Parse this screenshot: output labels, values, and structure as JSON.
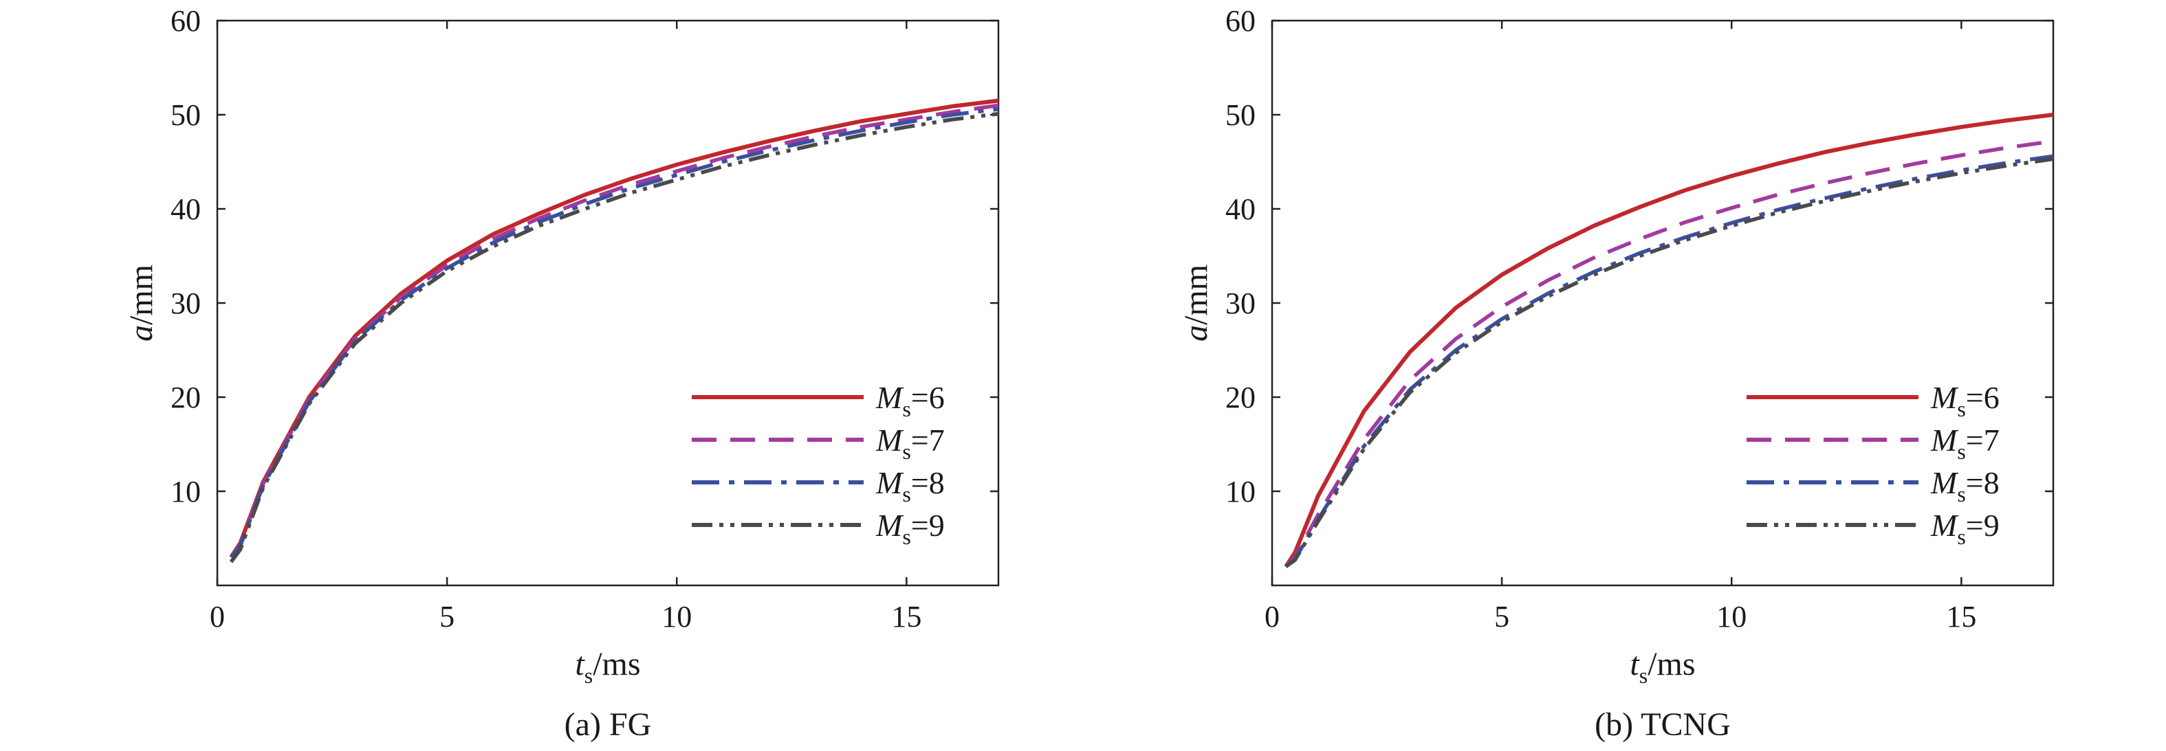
{
  "chart_data": [
    {
      "type": "line",
      "caption": "(a) FG",
      "xlabel": {
        "italic": "t",
        "sub": "s",
        "rest": "/ms"
      },
      "ylabel": {
        "italic": "a",
        "rest": "/mm"
      },
      "xlim": [
        0,
        17
      ],
      "ylim": [
        0,
        60
      ],
      "xticks": [
        0,
        5,
        10,
        15
      ],
      "yticks": [
        10,
        20,
        30,
        40,
        50,
        60
      ],
      "legend_position": "bottom-right",
      "series": [
        {
          "name": "Ms=6",
          "label_italic": "M",
          "label_sub": "s",
          "label_rest": "=6",
          "color": "#c1272d",
          "dash": "solid",
          "x": [
            0.3,
            0.5,
            1,
            2,
            3,
            4,
            5,
            6,
            7,
            8,
            9,
            10,
            11,
            12,
            13,
            14,
            15,
            16,
            17
          ],
          "y": [
            3.0,
            4.5,
            11.0,
            20.0,
            26.5,
            31.0,
            34.5,
            37.3,
            39.5,
            41.5,
            43.2,
            44.7,
            46.0,
            47.2,
            48.3,
            49.3,
            50.1,
            50.9,
            51.5
          ]
        },
        {
          "name": "Ms=7",
          "label_italic": "M",
          "label_sub": "s",
          "label_rest": "=7",
          "color": "#a23b9e",
          "dash": "dashed",
          "x": [
            0.3,
            0.5,
            1,
            2,
            3,
            4,
            5,
            6,
            7,
            8,
            9,
            10,
            11,
            12,
            13,
            14,
            15,
            16,
            17
          ],
          "y": [
            3.0,
            4.3,
            10.8,
            19.8,
            26.2,
            30.6,
            34.0,
            36.8,
            39.0,
            40.9,
            42.6,
            44.0,
            45.4,
            46.6,
            47.7,
            48.7,
            49.5,
            50.3,
            51.0
          ]
        },
        {
          "name": "Ms=8",
          "label_italic": "M",
          "label_sub": "s",
          "label_rest": "=8",
          "color": "#3b4fa0",
          "dash": "dashdot",
          "x": [
            0.3,
            0.5,
            1,
            2,
            3,
            4,
            5,
            6,
            7,
            8,
            9,
            10,
            11,
            12,
            13,
            14,
            15,
            16,
            17
          ],
          "y": [
            3.0,
            4.2,
            10.6,
            19.5,
            26.0,
            30.3,
            33.7,
            36.4,
            38.6,
            40.5,
            42.2,
            43.6,
            45.0,
            46.2,
            47.3,
            48.3,
            49.2,
            50.0,
            50.6
          ]
        },
        {
          "name": "Ms=9",
          "label_italic": "M",
          "label_sub": "s",
          "label_rest": "=9",
          "color": "#4a4a4a",
          "dash": "dashdotdot",
          "x": [
            0.3,
            0.5,
            1,
            2,
            3,
            4,
            5,
            6,
            7,
            8,
            9,
            10,
            11,
            12,
            13,
            14,
            15,
            16,
            17
          ],
          "y": [
            2.5,
            3.8,
            10.4,
            19.3,
            25.7,
            30.0,
            33.4,
            36.0,
            38.2,
            40.0,
            41.7,
            43.1,
            44.5,
            45.7,
            46.8,
            47.8,
            48.7,
            49.5,
            50.1
          ]
        }
      ]
    },
    {
      "type": "line",
      "caption": "(b) TCNG",
      "xlabel": {
        "italic": "t",
        "sub": "s",
        "rest": "/ms"
      },
      "ylabel": {
        "italic": "a",
        "rest": "/mm"
      },
      "xlim": [
        0,
        17
      ],
      "ylim": [
        0,
        60
      ],
      "xticks": [
        0,
        5,
        10,
        15
      ],
      "yticks": [
        10,
        20,
        30,
        40,
        50,
        60
      ],
      "legend_position": "bottom-right",
      "series": [
        {
          "name": "Ms=6",
          "label_italic": "M",
          "label_sub": "s",
          "label_rest": "=6",
          "color": "#c1272d",
          "dash": "solid",
          "x": [
            0.3,
            0.5,
            1,
            2,
            3,
            4,
            5,
            6,
            7,
            8,
            9,
            10,
            11,
            12,
            13,
            14,
            15,
            16,
            17
          ],
          "y": [
            2.0,
            3.5,
            9.5,
            18.5,
            24.8,
            29.5,
            33.0,
            35.8,
            38.2,
            40.2,
            42.0,
            43.5,
            44.8,
            46.0,
            47.0,
            47.9,
            48.7,
            49.4,
            50.0
          ]
        },
        {
          "name": "Ms=7",
          "label_italic": "M",
          "label_sub": "s",
          "label_rest": "=7",
          "color": "#a23b9e",
          "dash": "dashed",
          "x": [
            0.3,
            0.5,
            1,
            2,
            3,
            4,
            5,
            6,
            7,
            8,
            9,
            10,
            11,
            12,
            13,
            14,
            15,
            16,
            17
          ],
          "y": [
            2.0,
            3.0,
            7.5,
            15.5,
            21.8,
            26.2,
            29.6,
            32.4,
            34.8,
            36.8,
            38.6,
            40.1,
            41.5,
            42.7,
            43.8,
            44.8,
            45.7,
            46.5,
            47.2
          ]
        },
        {
          "name": "Ms=8",
          "label_italic": "M",
          "label_sub": "s",
          "label_rest": "=8",
          "color": "#3b4fa0",
          "dash": "dashdot",
          "x": [
            0.3,
            0.5,
            1,
            2,
            3,
            4,
            5,
            6,
            7,
            8,
            9,
            10,
            11,
            12,
            13,
            14,
            15,
            16,
            17
          ],
          "y": [
            2.0,
            2.8,
            7.0,
            14.8,
            20.8,
            25.0,
            28.3,
            31.0,
            33.3,
            35.3,
            37.0,
            38.5,
            39.9,
            41.1,
            42.2,
            43.2,
            44.1,
            44.9,
            45.6
          ]
        },
        {
          "name": "Ms=9",
          "label_italic": "M",
          "label_sub": "s",
          "label_rest": "=9",
          "color": "#4a4a4a",
          "dash": "dashdotdot",
          "x": [
            0.3,
            0.5,
            1,
            2,
            3,
            4,
            5,
            6,
            7,
            8,
            9,
            10,
            11,
            12,
            13,
            14,
            15,
            16,
            17
          ],
          "y": [
            2.0,
            2.7,
            6.8,
            14.5,
            20.5,
            24.7,
            28.0,
            30.7,
            33.0,
            35.0,
            36.7,
            38.2,
            39.6,
            40.8,
            41.9,
            42.9,
            43.8,
            44.6,
            45.3
          ]
        }
      ]
    }
  ]
}
